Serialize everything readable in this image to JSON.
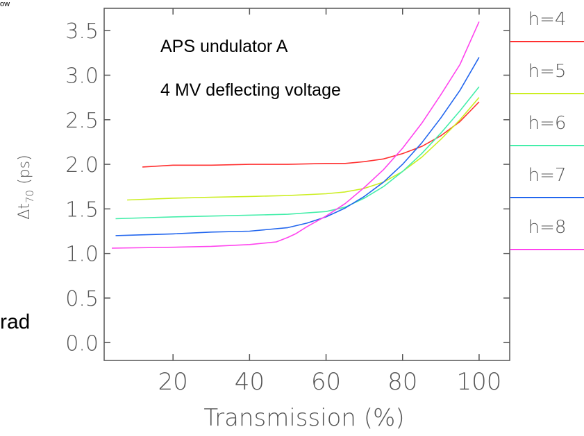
{
  "fragments": {
    "top_left": "ow",
    "left_edge": "rad"
  },
  "chart_data": {
    "type": "line",
    "title": "",
    "xlabel": "Transmission (%)",
    "ylabel": "Δt",
    "ylabel_sub": "70",
    "ylabel_unit": "(ps)",
    "xlim": [
      2,
      108
    ],
    "ylim": [
      -0.2,
      3.75
    ],
    "xticks": [
      20,
      40,
      60,
      80,
      100
    ],
    "yticks": [
      0.0,
      0.5,
      1.0,
      1.5,
      2.0,
      2.5,
      3.0,
      3.5
    ],
    "xtick_labels": [
      "20",
      "40",
      "60",
      "80",
      "100"
    ],
    "ytick_labels": [
      "0.0",
      "0.5",
      "1.0",
      "1.5",
      "2.0",
      "2.5",
      "3.0",
      "3.5"
    ],
    "grid": false,
    "legend_placement": "right-outside",
    "annotations": [
      "APS undulator A",
      "4 MV deflecting voltage"
    ],
    "series": [
      {
        "name": "h=4",
        "color": "#ff3030",
        "x": [
          12,
          20,
          30,
          40,
          50,
          60,
          65,
          70,
          75,
          80,
          85,
          90,
          95,
          100
        ],
        "y": [
          1.97,
          1.99,
          1.99,
          2.0,
          2.0,
          2.01,
          2.01,
          2.03,
          2.06,
          2.12,
          2.2,
          2.32,
          2.48,
          2.7
        ]
      },
      {
        "name": "h=5",
        "color": "#ccee22",
        "x": [
          8,
          20,
          30,
          40,
          50,
          60,
          65,
          70,
          75,
          80,
          85,
          90,
          95,
          100
        ],
        "y": [
          1.6,
          1.62,
          1.63,
          1.64,
          1.65,
          1.67,
          1.69,
          1.73,
          1.8,
          1.92,
          2.08,
          2.28,
          2.5,
          2.75
        ]
      },
      {
        "name": "h=6",
        "color": "#44eeaa",
        "x": [
          5,
          20,
          30,
          40,
          50,
          60,
          65,
          70,
          75,
          80,
          85,
          90,
          95,
          100
        ],
        "y": [
          1.39,
          1.41,
          1.42,
          1.43,
          1.44,
          1.47,
          1.52,
          1.62,
          1.75,
          1.92,
          2.12,
          2.35,
          2.6,
          2.87
        ]
      },
      {
        "name": "h=7",
        "color": "#2266ee",
        "x": [
          5,
          20,
          30,
          40,
          50,
          55,
          60,
          65,
          70,
          75,
          80,
          85,
          90,
          95,
          100
        ],
        "y": [
          1.2,
          1.22,
          1.24,
          1.25,
          1.29,
          1.34,
          1.41,
          1.51,
          1.64,
          1.8,
          2.0,
          2.24,
          2.52,
          2.83,
          3.2
        ]
      },
      {
        "name": "h=8",
        "color": "#ff44ee",
        "x": [
          4,
          20,
          30,
          40,
          47,
          50,
          52,
          55,
          60,
          65,
          70,
          75,
          80,
          85,
          90,
          95,
          100
        ],
        "y": [
          1.06,
          1.07,
          1.08,
          1.1,
          1.13,
          1.18,
          1.22,
          1.3,
          1.42,
          1.56,
          1.74,
          1.94,
          2.18,
          2.46,
          2.78,
          3.12,
          3.6
        ]
      }
    ]
  }
}
